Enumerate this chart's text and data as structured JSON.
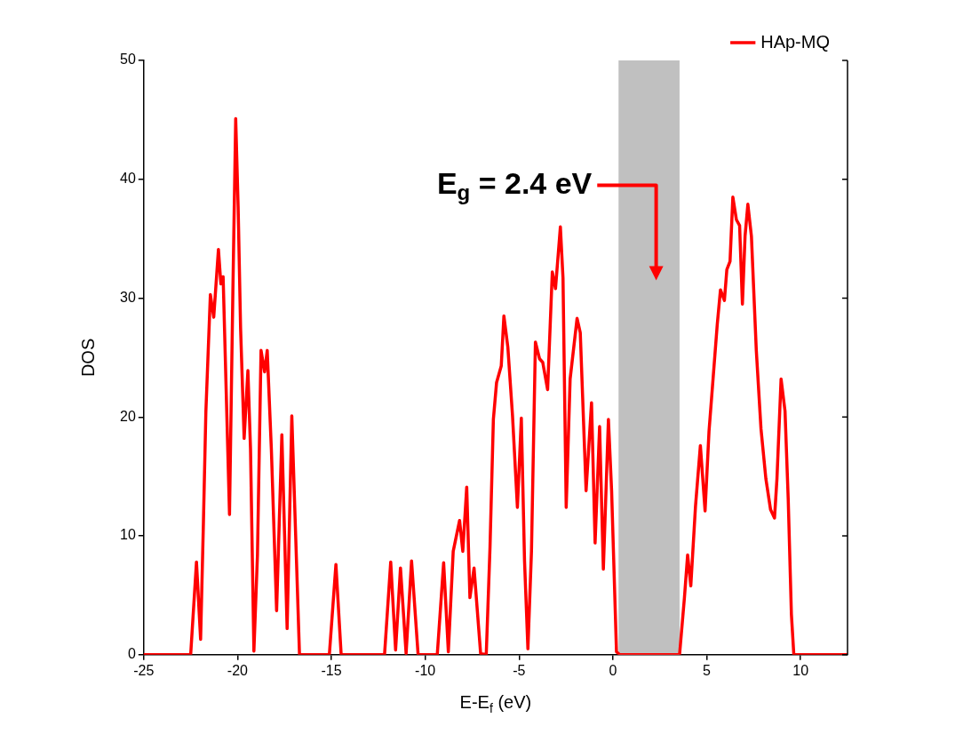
{
  "chart_data": {
    "type": "line",
    "xlabel": "E-E$_{f}$ (eV)",
    "ylabel": "DOS",
    "xlim": [
      -25,
      12.5
    ],
    "xticks": [
      -25,
      -20,
      -15,
      -10,
      -5,
      0,
      5,
      10
    ],
    "ylim": [
      0,
      50
    ],
    "yticks": [
      0,
      10,
      20,
      30,
      40,
      50
    ],
    "grid": false,
    "legend": "top right",
    "marker": "none",
    "line_style": "solid",
    "bands": [
      {
        "axis": "x",
        "from": 0.3,
        "to": 3.55,
        "label": "E$_{g}$ = 2.4 eV",
        "color": "#c0c0c0"
      }
    ],
    "series": [
      {
        "name": "HAp-MQ",
        "color": "#ff0000",
        "x": [
          -25,
          -22.5,
          -22.19,
          -21.97,
          -21.82,
          -21.69,
          -21.45,
          -21.27,
          -21.02,
          -20.89,
          -20.77,
          -20.43,
          -20.25,
          -20.1,
          -19.97,
          -19.84,
          -19.65,
          -19.45,
          -19.31,
          -19.13,
          -18.94,
          -18.75,
          -18.56,
          -18.42,
          -18.2,
          -17.92,
          -17.64,
          -17.36,
          -17.11,
          -16.7,
          -15.11,
          -14.76,
          -14.48,
          -12.17,
          -11.84,
          -11.58,
          -11.32,
          -11.02,
          -10.73,
          -10.38,
          -9.36,
          -9.02,
          -8.77,
          -8.51,
          -8.17,
          -8.0,
          -7.79,
          -7.62,
          -7.4,
          -7.05,
          -6.75,
          -6.55,
          -6.37,
          -6.2,
          -5.95,
          -5.81,
          -5.6,
          -5.35,
          -5.09,
          -4.88,
          -4.71,
          -4.53,
          -4.34,
          -4.13,
          -3.91,
          -3.74,
          -3.48,
          -3.23,
          -3.06,
          -2.8,
          -2.66,
          -2.49,
          -2.28,
          -1.91,
          -1.74,
          -1.43,
          -1.14,
          -0.95,
          -0.71,
          -0.51,
          -0.24,
          -0.07,
          0.19,
          0.36,
          3.55,
          3.81,
          3.98,
          4.15,
          4.4,
          4.66,
          4.91,
          5.12,
          5.34,
          5.56,
          5.73,
          5.94,
          6.07,
          6.24,
          6.39,
          6.58,
          6.75,
          6.9,
          7.04,
          7.19,
          7.38,
          7.64,
          7.89,
          8.15,
          8.4,
          8.61,
          8.74,
          8.96,
          9.17,
          9.34,
          9.51,
          9.64,
          12.5
        ],
        "values": [
          0,
          0,
          7.8,
          1.3,
          11.1,
          20.4,
          30.3,
          28.4,
          34.1,
          31.2,
          31.8,
          11.8,
          30.6,
          45.1,
          37.7,
          27.5,
          18.2,
          23.9,
          17.3,
          0.3,
          8.4,
          25.6,
          23.8,
          25.6,
          17.3,
          3.7,
          18.5,
          2.2,
          20.1,
          0,
          0,
          7.6,
          0,
          0,
          7.8,
          0.4,
          7.3,
          0.1,
          7.9,
          0,
          0,
          7.75,
          0.25,
          8.7,
          11.3,
          8.7,
          14.1,
          4.8,
          7.3,
          0.1,
          0,
          9.0,
          19.8,
          22.9,
          24.3,
          28.5,
          25.9,
          20.1,
          12.4,
          19.9,
          7.9,
          0.5,
          8.7,
          26.3,
          24.9,
          24.6,
          22.3,
          32.2,
          30.8,
          36.0,
          31.7,
          12.4,
          23.2,
          28.3,
          27.1,
          13.8,
          21.2,
          9.4,
          19.2,
          7.2,
          19.8,
          13.8,
          0.25,
          0,
          0,
          4.8,
          8.4,
          5.8,
          12.5,
          17.6,
          12.1,
          18.8,
          23.3,
          27.8,
          30.7,
          29.8,
          32.4,
          33.1,
          38.5,
          36.6,
          36.1,
          29.5,
          35.2,
          37.9,
          35.2,
          25.6,
          19.0,
          14.8,
          12.2,
          11.5,
          14.8,
          23.2,
          20.5,
          13.1,
          3.4,
          0,
          0
        ]
      }
    ]
  }
}
